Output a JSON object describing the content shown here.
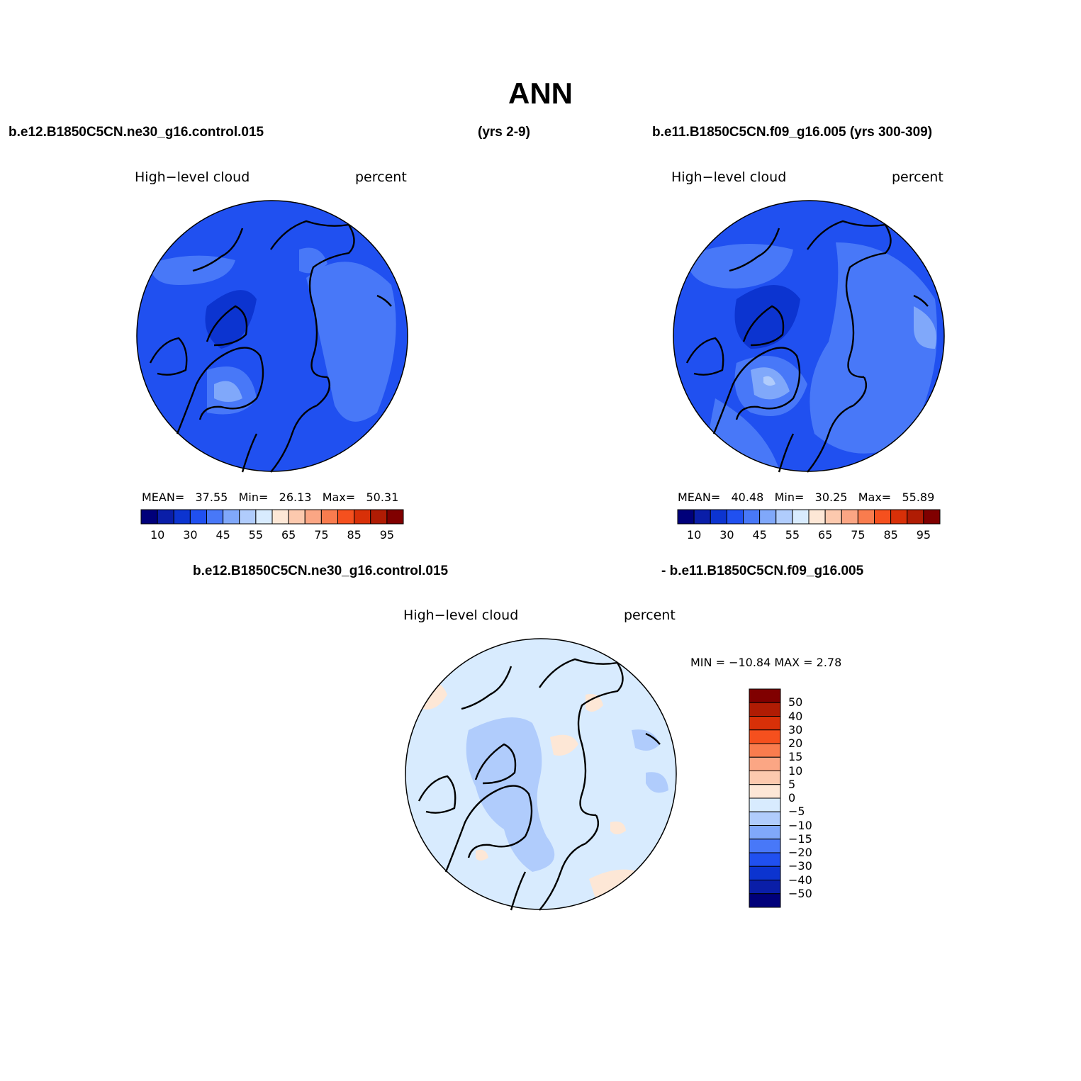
{
  "title": "ANN",
  "header": {
    "case1": "b.e12.B1850C5CN.ne30_g16.control.015",
    "case1_years": "(yrs 2-9)",
    "case2": "b.e11.B1850C5CN.f09_g16.005 (yrs 300-309)",
    "diff_case1": "b.e12.B1850C5CN.ne30_g16.control.015",
    "diff_case2": "- b.e11.B1850C5CN.f09_g16.005"
  },
  "panels": [
    {
      "variable": "High−level cloud",
      "units": "percent",
      "stats": {
        "mean_label": "MEAN=",
        "mean": "37.55",
        "min_label": "Min=",
        "min": "26.13",
        "max_label": "Max=",
        "max": "50.31"
      }
    },
    {
      "variable": "High−level cloud",
      "units": "percent",
      "stats": {
        "mean_label": "MEAN=",
        "mean": "40.48",
        "min_label": "Min=",
        "min": "30.25",
        "max_label": "Max=",
        "max": "55.89"
      }
    }
  ],
  "diff_panel": {
    "variable": "High−level cloud",
    "units": "percent",
    "minmax_text": "MIN = −10.84 MAX =    2.78"
  },
  "colorbar": {
    "colors": [
      "#00007a",
      "#0a1ea8",
      "#0c34d0",
      "#2050f0",
      "#4878f8",
      "#80a8fa",
      "#b0ccfc",
      "#d8ebfe",
      "#fde7d6",
      "#fcc9ae",
      "#fba684",
      "#f97c4e",
      "#f5501e",
      "#d83008",
      "#b01c04",
      "#800000"
    ],
    "tick_labels": [
      "10",
      "30",
      "45",
      "55",
      "65",
      "75",
      "85",
      "95"
    ]
  },
  "diff_colorbar": {
    "colors_top_to_bottom": [
      "#800000",
      "#b01c04",
      "#d83008",
      "#f5501e",
      "#f97c4e",
      "#fba684",
      "#fcc9ae",
      "#fde7d6",
      "#d8ebfe",
      "#b0ccfc",
      "#80a8fa",
      "#4878f8",
      "#2050f0",
      "#0c34d0",
      "#0a1ea8",
      "#00007a"
    ],
    "tick_labels": [
      "50",
      "40",
      "30",
      "20",
      "15",
      "10",
      "5",
      "0",
      "−5",
      "−10",
      "−15",
      "−20",
      "−30",
      "−40",
      "−50"
    ]
  },
  "field_colors": {
    "panel1": {
      "base": "#2050f0",
      "lighter": "#4878f8",
      "lightest": "#80a8fa",
      "darker": "#0c34d0"
    },
    "panel2": {
      "base": "#2050f0",
      "lighter": "#4878f8",
      "lightest": "#80a8fa",
      "palest": "#b0ccfc",
      "darker": "#0c34d0"
    },
    "diff": {
      "base": "#d8ebfe",
      "negative": "#b0ccfc",
      "positive": "#fde7d6"
    }
  }
}
